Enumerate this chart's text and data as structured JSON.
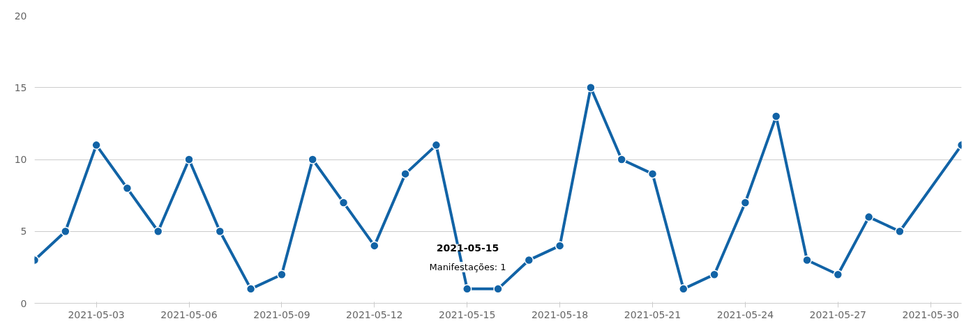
{
  "chart_data": {
    "type": "line",
    "x": [
      "2021-05-01",
      "2021-05-02",
      "2021-05-03",
      "2021-05-04",
      "2021-05-05",
      "2021-05-06",
      "2021-05-07",
      "2021-05-08",
      "2021-05-09",
      "2021-05-10",
      "2021-05-11",
      "2021-05-12",
      "2021-05-13",
      "2021-05-14",
      "2021-05-15",
      "2021-05-16",
      "2021-05-17",
      "2021-05-18",
      "2021-05-19",
      "2021-05-20",
      "2021-05-21",
      "2021-05-22",
      "2021-05-23",
      "2021-05-24",
      "2021-05-25",
      "2021-05-26",
      "2021-05-27",
      "2021-05-28",
      "2021-05-29",
      "2021-05-31"
    ],
    "series": [
      {
        "color": "#1163a6",
        "values": [
          3,
          5,
          11,
          8,
          5,
          10,
          5,
          1,
          2,
          10,
          7,
          4,
          9,
          11,
          1,
          1,
          3,
          4,
          15,
          10,
          9,
          1,
          2,
          7,
          13,
          3,
          2,
          6,
          5,
          11
        ]
      }
    ],
    "xlim": [
      "2021-05-01",
      "2021-05-31"
    ],
    "xticks": [
      "2021-05-03",
      "2021-05-06",
      "2021-05-09",
      "2021-05-12",
      "2021-05-15",
      "2021-05-18",
      "2021-05-21",
      "2021-05-24",
      "2021-05-27",
      "2021-05-30"
    ],
    "ylim": [
      0,
      20
    ],
    "yticks": [
      0,
      5,
      10,
      15,
      20
    ],
    "grid": "y",
    "marker": "circle",
    "line_style": "solid",
    "annotations": [
      "2021-05-15",
      "Manifestações: 1"
    ]
  }
}
